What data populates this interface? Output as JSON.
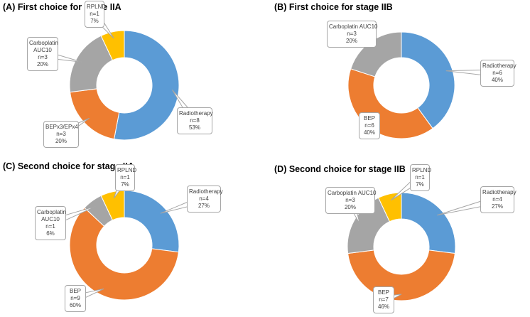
{
  "chart_data": [
    {
      "type": "donut",
      "title": "(A) First choice for stage IIA",
      "categories": [
        "Radiotherapy",
        "BEPx3/EPx4",
        "Carboplatin AUC10",
        "RPLND"
      ],
      "count_labels": [
        "n=8",
        "n=3",
        "n=3",
        "n=1"
      ],
      "values": [
        53,
        20,
        20,
        7
      ],
      "value_labels": [
        "53%",
        "20%",
        "20%",
        "7%"
      ],
      "colors": [
        "#5b9bd5",
        "#ed7d31",
        "#a5a5a5",
        "#ffc000"
      ]
    },
    {
      "type": "donut",
      "title": "(B) First choice for stage IIB",
      "categories": [
        "Radiotherapy",
        "BEP",
        "Carboplatin AUC10"
      ],
      "count_labels": [
        "n=6",
        "n=6",
        "n=3"
      ],
      "values": [
        40,
        40,
        20
      ],
      "value_labels": [
        "40%",
        "40%",
        "20%"
      ],
      "colors": [
        "#5b9bd5",
        "#ed7d31",
        "#a5a5a5"
      ]
    },
    {
      "type": "donut",
      "title": "(C) Second choice for stage IIA",
      "categories": [
        "Radiotherapy",
        "BEP",
        "Carboplatin AUC10",
        "RPLND"
      ],
      "count_labels": [
        "n=4",
        "n=9",
        "n=1",
        "n=1"
      ],
      "values": [
        27,
        60,
        6,
        7
      ],
      "value_labels": [
        "27%",
        "60%",
        "6%",
        "7%"
      ],
      "colors": [
        "#5b9bd5",
        "#ed7d31",
        "#a5a5a5",
        "#ffc000"
      ]
    },
    {
      "type": "donut",
      "title": "(D) Second choice for stage IIB",
      "categories": [
        "Radiotherapy",
        "BEP",
        "Carboplatin AUC10",
        "RPLND"
      ],
      "count_labels": [
        "n=4",
        "n=7",
        "n=3",
        "n=1"
      ],
      "values": [
        27,
        46,
        20,
        7
      ],
      "value_labels": [
        "27%",
        "46%",
        "20%",
        "7%"
      ],
      "colors": [
        "#5b9bd5",
        "#ed7d31",
        "#a5a5a5",
        "#ffc000"
      ]
    }
  ]
}
